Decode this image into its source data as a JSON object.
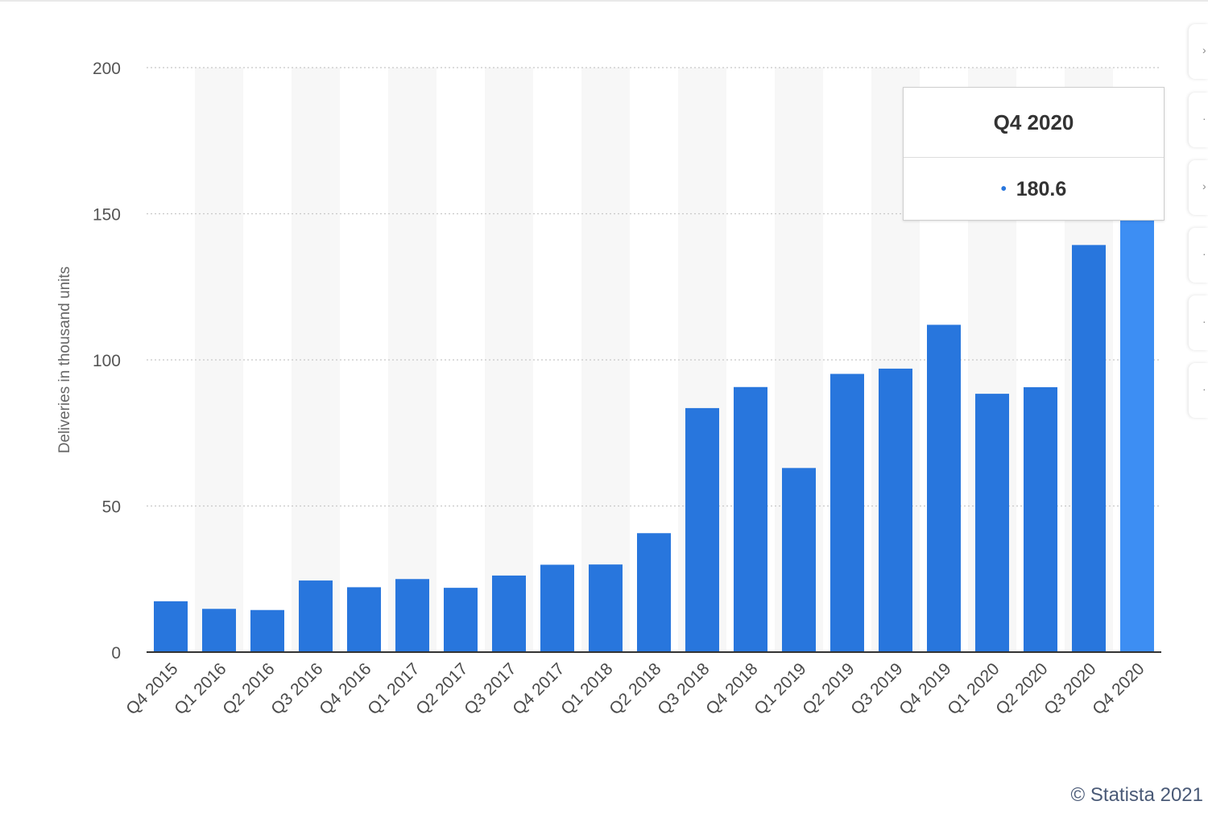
{
  "chart_data": {
    "type": "bar",
    "categories": [
      "Q4 2015",
      "Q1 2016",
      "Q2 2016",
      "Q3 2016",
      "Q4 2016",
      "Q1 2017",
      "Q2 2017",
      "Q3 2017",
      "Q4 2017",
      "Q1 2018",
      "Q2 2018",
      "Q3 2018",
      "Q4 2018",
      "Q1 2019",
      "Q2 2019",
      "Q3 2019",
      "Q4 2019",
      "Q1 2020",
      "Q2 2020",
      "Q3 2020",
      "Q4 2020"
    ],
    "values": [
      17.4,
      14.8,
      14.4,
      24.5,
      22.2,
      25.0,
      22.0,
      26.2,
      29.9,
      29.98,
      40.7,
      83.5,
      90.7,
      63.0,
      95.2,
      97.0,
      112.0,
      88.4,
      90.65,
      139.3,
      180.6
    ],
    "ylabel": "Deliveries in thousand units",
    "yticks": [
      0,
      50,
      100,
      150,
      200
    ],
    "ylim": [
      0,
      200
    ],
    "grid": true,
    "bar_color": "#2876dd",
    "highlight_color": "#3d8ef3",
    "highlight_index": 20
  },
  "tooltip": {
    "title": "Q4 2020",
    "value": "180.6",
    "dot": "•"
  },
  "credit": "© Statista 2021"
}
